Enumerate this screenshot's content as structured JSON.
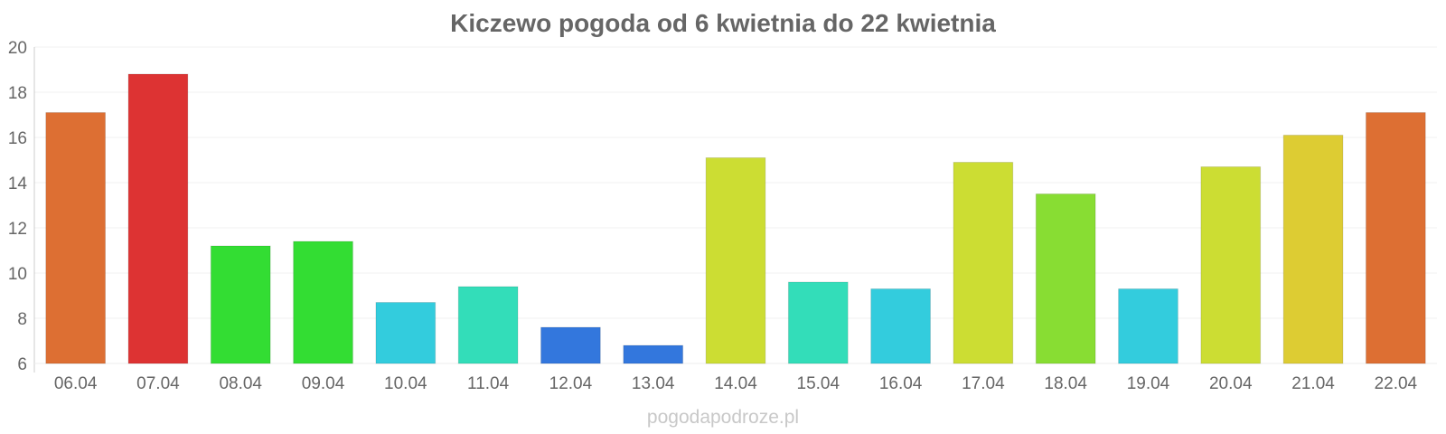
{
  "chart_data": {
    "type": "bar",
    "title": "Kiczewo pogoda od 6 kwietnia do 22 kwietnia",
    "xlabel": "",
    "ylabel": "",
    "ylim": [
      6,
      20
    ],
    "yticks": [
      6,
      8,
      10,
      12,
      14,
      16,
      18,
      20
    ],
    "grid": true,
    "categories": [
      "06.04",
      "07.04",
      "08.04",
      "09.04",
      "10.04",
      "11.04",
      "12.04",
      "13.04",
      "14.04",
      "15.04",
      "16.04",
      "17.04",
      "18.04",
      "19.04",
      "20.04",
      "21.04",
      "22.04"
    ],
    "values": [
      17.1,
      18.8,
      11.2,
      11.4,
      8.7,
      9.4,
      7.6,
      6.8,
      15.1,
      9.6,
      9.3,
      14.9,
      13.5,
      9.3,
      14.7,
      16.1,
      17.1
    ],
    "colors": [
      "#dd6f33",
      "#dd3333",
      "#33dd33",
      "#33dd33",
      "#33ccdd",
      "#33ddb9",
      "#3377dd",
      "#3377dd",
      "#ccdd33",
      "#33ddb9",
      "#33ccdd",
      "#ccdd33",
      "#88dd33",
      "#33ccdd",
      "#ccdd33",
      "#ddcc33",
      "#dd6f33"
    ]
  },
  "watermark": "pogodapodroze.pl"
}
